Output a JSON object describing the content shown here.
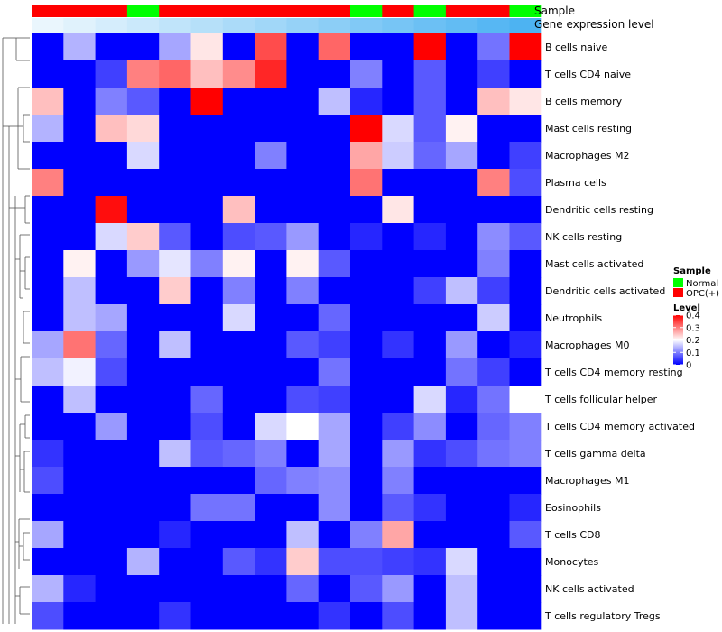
{
  "chart_data": {
    "type": "heatmap",
    "annotation_labels": [
      "Sample",
      "Gene expression level"
    ],
    "sample_groups": [
      "OPC(+)",
      "OPC(+)",
      "OPC(+)",
      "Normal",
      "OPC(+)",
      "OPC(+)",
      "OPC(+)",
      "OPC(+)",
      "OPC(+)",
      "OPC(+)",
      "Normal",
      "OPC(+)",
      "Normal",
      "OPC(+)",
      "OPC(+)",
      "Normal"
    ],
    "expression_levels": [
      0.0,
      0.04,
      0.08,
      0.12,
      0.16,
      0.2,
      0.24,
      0.28,
      0.32,
      0.36,
      0.4,
      0.44,
      0.48,
      0.52,
      0.56,
      0.6
    ],
    "rows": [
      "B cells naive",
      "T cells CD4 naive",
      "B cells memory",
      "Mast cells resting",
      "Macrophages M2",
      "Plasma cells",
      "Dendritic cells resting",
      "NK cells resting",
      "Mast cells activated",
      "Dendritic cells activated",
      "Neutrophils",
      "Macrophages M0",
      "T cells CD4 memory resting",
      "T cells follicular helper",
      "T cells CD4 memory activated",
      "T cells gamma delta",
      "Macrophages M1",
      "Eosinophils",
      "T cells CD8",
      "Monocytes",
      "NK cells activated",
      "T cells regulatory  Tregs"
    ],
    "values": [
      [
        0,
        0.14,
        0,
        0,
        0.13,
        0.22,
        0,
        0.34,
        0,
        0.32,
        0,
        0,
        0.4,
        0,
        0.09,
        0.4
      ],
      [
        0,
        0,
        0.05,
        0.3,
        0.32,
        0.25,
        0.29,
        0.37,
        0,
        0,
        0.1,
        0,
        0.07,
        0,
        0.05,
        0
      ],
      [
        0.25,
        0,
        0.1,
        0.07,
        0,
        0.4,
        0,
        0,
        0,
        0.15,
        0.03,
        0,
        0.07,
        0,
        0.25,
        0.22
      ],
      [
        0.14,
        0,
        0.25,
        0.23,
        0,
        0,
        0,
        0,
        0,
        0,
        0.4,
        0.17,
        0.07,
        0.21,
        0,
        0
      ],
      [
        0,
        0,
        0,
        0.17,
        0,
        0,
        0,
        0.1,
        0,
        0,
        0.27,
        0.16,
        0.08,
        0.13,
        0,
        0.05
      ],
      [
        0.3,
        0,
        0,
        0,
        0,
        0,
        0,
        0,
        0,
        0,
        0.31,
        0,
        0,
        0,
        0.3,
        0.06
      ],
      [
        0,
        0,
        0.39,
        0,
        0,
        0,
        0.25,
        0,
        0,
        0,
        0,
        0.22,
        0,
        0,
        0,
        0
      ],
      [
        0,
        0,
        0.17,
        0.24,
        0.07,
        0,
        0.06,
        0.07,
        0.12,
        0,
        0.03,
        0,
        0.03,
        0,
        0.11,
        0.07
      ],
      [
        0,
        0.21,
        0,
        0.12,
        0.18,
        0.1,
        0.21,
        0,
        0.21,
        0.07,
        0,
        0,
        0,
        0,
        0.1,
        0
      ],
      [
        0,
        0.15,
        0,
        0,
        0.24,
        0,
        0.1,
        0,
        0.1,
        0,
        0,
        0,
        0.05,
        0.15,
        0.05,
        0
      ],
      [
        0,
        0.15,
        0.13,
        0,
        0,
        0,
        0.17,
        0,
        0,
        0.08,
        0,
        0,
        0,
        0,
        0.16,
        0
      ],
      [
        0.13,
        0.31,
        0.08,
        0,
        0.15,
        0,
        0,
        0,
        0.07,
        0.05,
        0,
        0.04,
        0,
        0.12,
        0,
        0.03
      ],
      [
        0.15,
        0.19,
        0.06,
        0,
        0,
        0,
        0,
        0,
        0,
        0.09,
        0,
        0,
        0,
        0.09,
        0.05,
        0
      ],
      [
        0,
        0.15,
        0,
        0,
        0,
        0.08,
        0,
        0,
        0.06,
        0.05,
        0,
        0,
        0.17,
        0.03,
        0.09,
        0.2
      ],
      [
        0,
        0,
        0.12,
        0,
        0,
        0.06,
        0,
        0.17,
        0.2,
        0.13,
        0,
        0.05,
        0.11,
        0,
        0.08,
        0.1
      ],
      [
        0.04,
        0,
        0,
        0,
        0.15,
        0.07,
        0.08,
        0.1,
        0,
        0.13,
        0,
        0.12,
        0.04,
        0.06,
        0.09,
        0.1
      ],
      [
        0.06,
        0,
        0,
        0,
        0,
        0,
        0,
        0.08,
        0.1,
        0.11,
        0,
        0.1,
        0,
        0,
        0,
        0
      ],
      [
        0,
        0,
        0,
        0,
        0,
        0.09,
        0.09,
        0,
        0,
        0.11,
        0,
        0.07,
        0.04,
        0,
        0,
        0.03
      ],
      [
        0.13,
        0,
        0,
        0,
        0.03,
        0,
        0,
        0,
        0.15,
        0,
        0.1,
        0.27,
        0,
        0,
        0,
        0.07
      ],
      [
        0,
        0,
        0,
        0.14,
        0,
        0,
        0.07,
        0.04,
        0.24,
        0.06,
        0.06,
        0.05,
        0.04,
        0.17,
        0,
        0
      ],
      [
        0.14,
        0.03,
        0,
        0,
        0,
        0,
        0,
        0,
        0.08,
        0,
        0.07,
        0.12,
        0,
        0.15,
        0,
        0
      ],
      [
        0.06,
        0,
        0,
        0,
        0.04,
        0,
        0,
        0,
        0,
        0.04,
        0,
        0.06,
        0,
        0.15,
        0,
        0
      ]
    ],
    "color_scale": {
      "min": 0,
      "mid": 0.2,
      "max": 0.4,
      "low": "#0000FF",
      "midcolor": "#FFFFFF",
      "high": "#FF0000"
    },
    "expression_scale": {
      "low": "#EAF6FD",
      "high": "#4DB3F2"
    },
    "legend": {
      "sample_title": "Sample",
      "sample_entries": [
        {
          "label": "Normal",
          "color": "#00FF00"
        },
        {
          "label": "OPC(+)",
          "color": "#FF0000"
        }
      ],
      "level_title": "Level",
      "level_ticks": [
        "0.4",
        "0.3",
        "0.2",
        "0.1",
        "0"
      ],
      "level_tick_values": [
        0.4,
        0.3,
        0.2,
        0.1,
        0
      ],
      "placement": "right"
    },
    "dendrogram": "rows"
  }
}
